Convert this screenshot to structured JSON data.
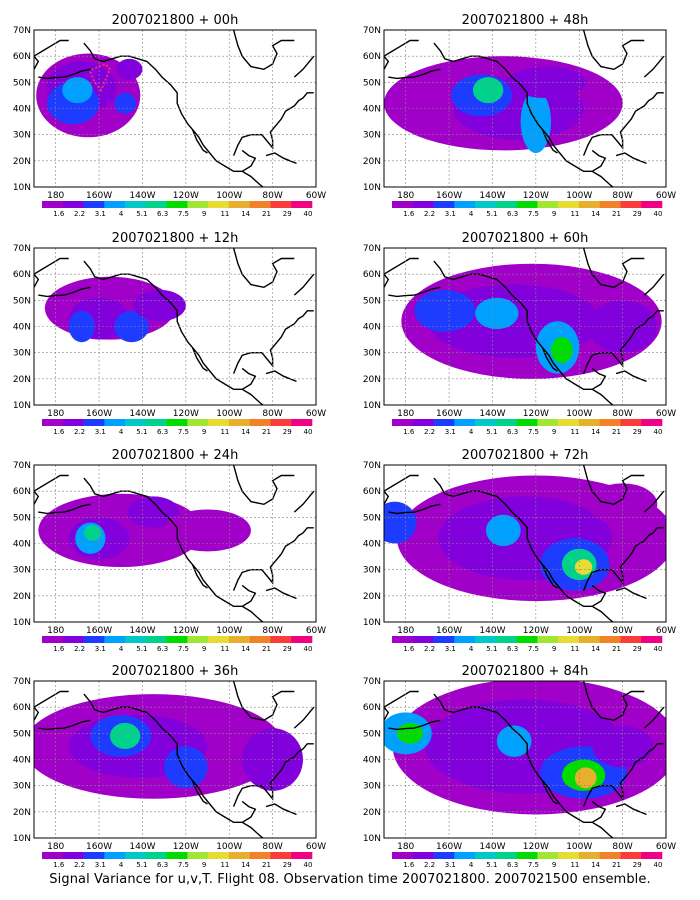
{
  "figure": {
    "caption": "Signal Variance for u,v,T. Flight 08. Observation time 2007021800. 2007021500 ensemble."
  },
  "map": {
    "lat_ticks": [
      "10N",
      "20N",
      "30N",
      "40N",
      "50N",
      "60N",
      "70N"
    ],
    "lon_ticks": [
      "180",
      "160W",
      "140W",
      "120W",
      "100W",
      "80W",
      "60W"
    ]
  },
  "colorbar": {
    "labels": [
      "1.6",
      "2.2",
      "3.1",
      "4",
      "5.1",
      "6.3",
      "7.5",
      "9",
      "11",
      "14",
      "21",
      "29",
      "40"
    ],
    "colors": [
      "#a000c8",
      "#8200dc",
      "#1e3cff",
      "#00a0ff",
      "#00c8c8",
      "#00d28c",
      "#00dc00",
      "#a0e632",
      "#e6dc32",
      "#e6af2d",
      "#f08228",
      "#fa3c3c",
      "#f00082"
    ]
  },
  "panels": [
    {
      "title": "2007021800 + 00h"
    },
    {
      "title": "2007021800 + 48h"
    },
    {
      "title": "2007021800 + 12h"
    },
    {
      "title": "2007021800 + 60h"
    },
    {
      "title": "2007021800 + 24h"
    },
    {
      "title": "2007021800 + 72h"
    },
    {
      "title": "2007021800 + 36h"
    },
    {
      "title": "2007021800 + 84h"
    }
  ]
}
